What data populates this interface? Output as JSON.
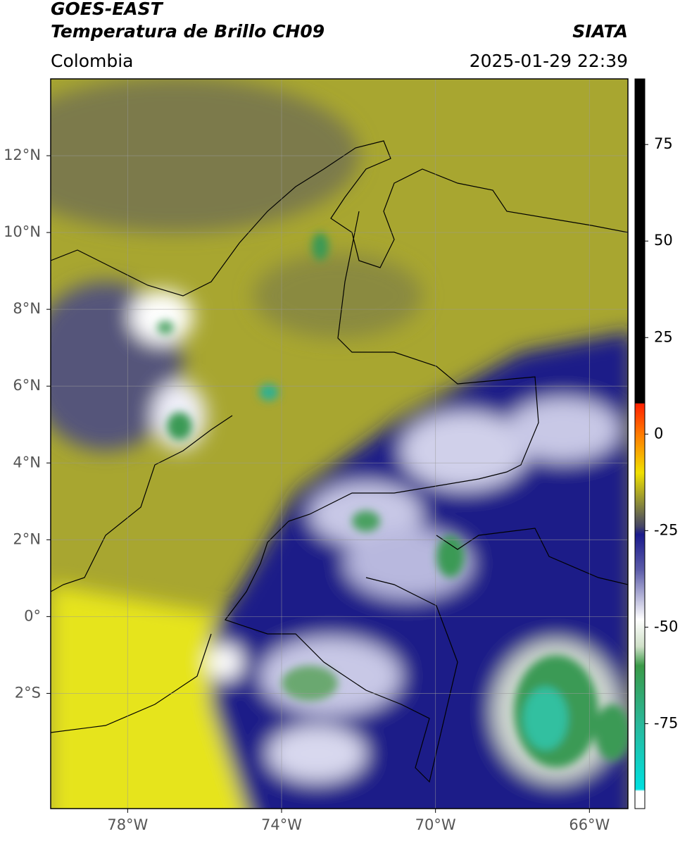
{
  "header": {
    "title": "GOES-EAST",
    "subtitle": "Temperatura de Brillo CH09",
    "source": "SIATA",
    "region": "Colombia",
    "timestamp": "2025-01-29 22:39"
  },
  "map": {
    "xlim": [
      -80,
      -65
    ],
    "ylim": [
      -5,
      14
    ],
    "xticks": [
      {
        "value": -78,
        "label": "78°W"
      },
      {
        "value": -74,
        "label": "74°W"
      },
      {
        "value": -70,
        "label": "70°W"
      },
      {
        "value": -66,
        "label": "66°W"
      }
    ],
    "yticks": [
      {
        "value": 12,
        "label": "12°N"
      },
      {
        "value": 10,
        "label": "10°N"
      },
      {
        "value": 8,
        "label": "8°N"
      },
      {
        "value": 6,
        "label": "6°N"
      },
      {
        "value": 4,
        "label": "4°N"
      },
      {
        "value": 2,
        "label": "2°N"
      },
      {
        "value": 0,
        "label": "0°"
      },
      {
        "value": -2,
        "label": "2°S"
      }
    ],
    "grid": true
  },
  "colorbar": {
    "range": [
      -97,
      92
    ],
    "ticks": [
      75,
      50,
      25,
      0,
      -25,
      -50,
      -75
    ]
  }
}
